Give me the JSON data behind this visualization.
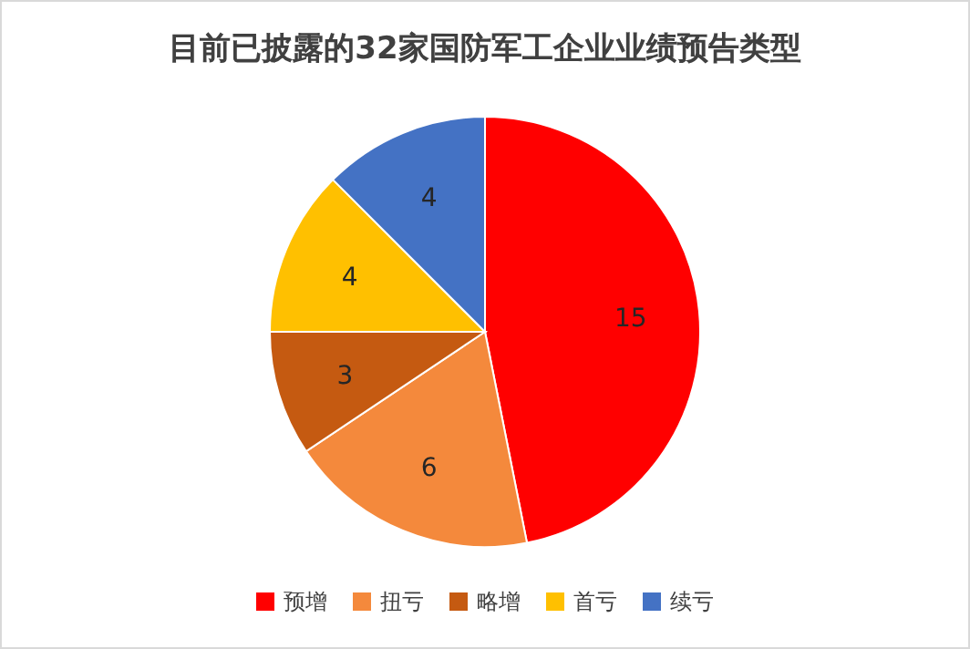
{
  "chart_data": {
    "type": "pie",
    "title": "目前已披露的32家国防军工企业业绩预告类型",
    "categories": [
      "预增",
      "扭亏",
      "略增",
      "首亏",
      "续亏"
    ],
    "values": [
      15,
      6,
      3,
      4,
      4
    ],
    "colors": [
      "#ff0000",
      "#f4893c",
      "#c55a11",
      "#ffc000",
      "#4472c4"
    ],
    "data_labels": true,
    "legend": "bottom"
  }
}
